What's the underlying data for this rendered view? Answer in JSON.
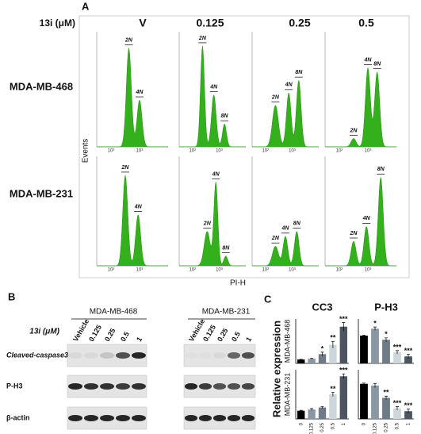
{
  "panel_a": {
    "label": "A",
    "treatment": "13i (μM)",
    "columns": [
      "V",
      "0.125",
      "0.25",
      "0.5"
    ],
    "rows": [
      "MDA-MB-468",
      "MDA-MB-231"
    ],
    "ylabel": "Events",
    "xlabel": "PI-H",
    "axis_labels": [
      "10²",
      "10³"
    ],
    "plots": [
      {
        "labels": [
          "2N",
          "4N"
        ]
      },
      {
        "labels": [
          "2N",
          "4N",
          "8N"
        ]
      },
      {
        "labels": [
          "2N",
          "4N",
          "8N"
        ]
      },
      {
        "labels": [
          "2N",
          "4N",
          "8N"
        ]
      },
      {
        "labels": [
          "2N",
          "4N"
        ]
      },
      {
        "labels": [
          "2N",
          "4N",
          "8N"
        ]
      },
      {
        "labels": [
          "2N",
          "4N",
          "8N"
        ]
      },
      {
        "labels": [
          "2N",
          "4N",
          "8N"
        ]
      }
    ]
  },
  "panel_b": {
    "label": "B",
    "treatment": "13i (μM)",
    "cell_lines": [
      "MDA-MB-468",
      "MDA-MB-231"
    ],
    "lanes": [
      "Vehicle",
      "0.125",
      "0.25",
      "0.5",
      "1"
    ],
    "proteins": [
      "Cleaved-caspase3",
      "P-H3",
      "β-actin"
    ]
  },
  "panel_c": {
    "label": "C",
    "ylabel": "Relative expression",
    "row_labels": [
      "MDA-MB-468",
      "MDA-MB-231"
    ]
  },
  "chart_data": [
    {
      "type": "bar",
      "title": "CC3",
      "categories": [
        "0",
        "0.125",
        "0.25",
        "0.5",
        "1"
      ],
      "values": [
        1,
        1.2,
        2.4,
        4.8,
        9.5
      ],
      "errors": [
        0.05,
        0.15,
        0.5,
        0.9,
        1.1
      ],
      "value_labels": [
        null,
        null,
        "*",
        "**",
        "***"
      ],
      "colors": [
        "#000000",
        "#8a96a2",
        "#6e7a86",
        "#cdd6db",
        "#4b5661"
      ],
      "ylim": [
        0,
        11.5
      ]
    },
    {
      "type": "bar",
      "title": "P-H3",
      "categories": [
        "0",
        "0.125",
        "0.25",
        "0.5",
        "1"
      ],
      "values": [
        1,
        1.25,
        0.85,
        0.4,
        0.25
      ],
      "errors": [
        0.02,
        0.06,
        0.07,
        0.06,
        0.08
      ],
      "value_labels": [
        null,
        "*",
        "*",
        "***",
        "***"
      ],
      "colors": [
        "#000000",
        "#8a96a2",
        "#6e7a86",
        "#cdd6db",
        "#4b5661"
      ],
      "ylim": [
        0,
        1.6
      ]
    },
    {
      "type": "bar",
      "categories": [
        "0",
        "0.125",
        "0.25",
        "0.5",
        "1"
      ],
      "values": [
        1,
        1.15,
        1.4,
        3,
        5.2
      ],
      "errors": [
        0.05,
        0.12,
        0.12,
        0.25,
        0.3
      ],
      "value_labels": [
        null,
        null,
        null,
        "**",
        "***"
      ],
      "colors": [
        "#000000",
        "#8a96a2",
        "#6e7a86",
        "#cdd6db",
        "#4b5661"
      ],
      "ylim": [
        0,
        6
      ]
    },
    {
      "type": "bar",
      "categories": [
        "0",
        "0.125",
        "0.25",
        "0.5",
        "1"
      ],
      "values": [
        1,
        0.95,
        0.6,
        0.3,
        0.22
      ],
      "errors": [
        0.02,
        0.06,
        0.05,
        0.05,
        0.06
      ],
      "value_labels": [
        null,
        null,
        "**",
        "***",
        "***"
      ],
      "colors": [
        "#000000",
        "#8a96a2",
        "#6e7a86",
        "#cdd6db",
        "#4b5661"
      ],
      "ylim": [
        0,
        1.4
      ]
    }
  ]
}
